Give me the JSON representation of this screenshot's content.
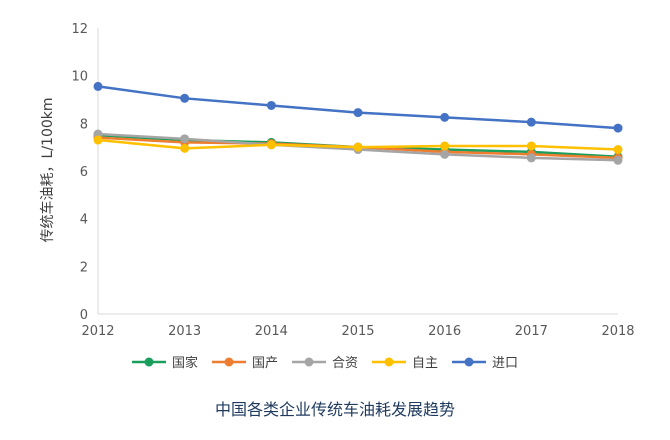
{
  "chart_data": {
    "type": "line",
    "title": "",
    "caption": "中国各类企业传统车油耗发展趋势",
    "xlabel": "",
    "ylabel": "传统车油耗，L/100km",
    "x": [
      "2012",
      "2013",
      "2014",
      "2015",
      "2016",
      "2017",
      "2018"
    ],
    "ylim": [
      0,
      12
    ],
    "yticks": [
      0,
      2,
      4,
      6,
      8,
      10,
      12
    ],
    "grid": false,
    "legend_position": "bottom",
    "series": [
      {
        "name": "国家",
        "color": "#1a9e5c",
        "values": [
          7.5,
          7.3,
          7.2,
          7.0,
          6.9,
          6.8,
          6.6
        ]
      },
      {
        "name": "国产",
        "color": "#ed7d31",
        "values": [
          7.4,
          7.2,
          7.15,
          7.0,
          6.8,
          6.7,
          6.55
        ]
      },
      {
        "name": "合资",
        "color": "#a5a5a5",
        "values": [
          7.55,
          7.35,
          7.1,
          6.9,
          6.7,
          6.55,
          6.45
        ]
      },
      {
        "name": "自主",
        "color": "#ffc000",
        "values": [
          7.3,
          6.95,
          7.1,
          7.0,
          7.05,
          7.05,
          6.9
        ]
      },
      {
        "name": "进口",
        "color": "#4472c4",
        "values": [
          9.55,
          9.05,
          8.75,
          8.45,
          8.25,
          8.05,
          7.8
        ]
      }
    ]
  }
}
